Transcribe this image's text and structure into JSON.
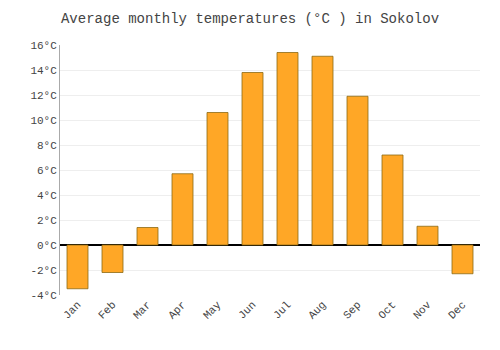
{
  "chart_data": {
    "type": "bar",
    "title": "Average monthly temperatures (°C ) in Sokolov",
    "categories": [
      "Jan",
      "Feb",
      "Mar",
      "Apr",
      "May",
      "Jun",
      "Jul",
      "Aug",
      "Sep",
      "Oct",
      "Nov",
      "Dec"
    ],
    "values": [
      -3.5,
      -2.2,
      1.4,
      5.7,
      10.6,
      13.8,
      15.4,
      15.1,
      11.9,
      7.2,
      1.5,
      -2.3
    ],
    "color": "#FFA726",
    "ylim": [
      -4,
      16
    ],
    "yticks": [
      {
        "value": -4,
        "label": "-4°C"
      },
      {
        "value": -2,
        "label": "-2°C"
      },
      {
        "value": 0,
        "label": "0°C"
      },
      {
        "value": 2,
        "label": "2°C"
      },
      {
        "value": 4,
        "label": "4°C"
      },
      {
        "value": 6,
        "label": "6°C"
      },
      {
        "value": 8,
        "label": "8°C"
      },
      {
        "value": 10,
        "label": "10°C"
      },
      {
        "value": 12,
        "label": "12°C"
      },
      {
        "value": 14,
        "label": "14°C"
      },
      {
        "value": 16,
        "label": "16°C"
      }
    ],
    "grid": true
  }
}
